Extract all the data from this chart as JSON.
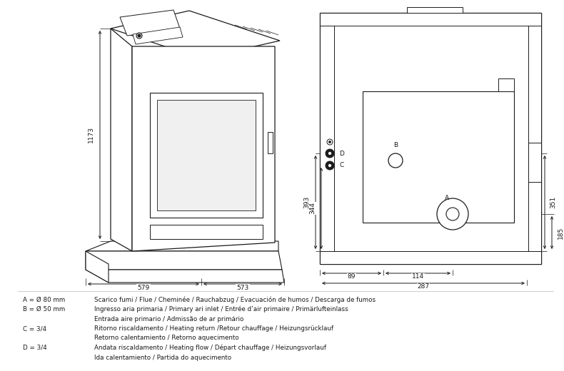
{
  "bg_color": "#ffffff",
  "line_color": "#1a1a1a",
  "text_color": "#1a1a1a",
  "dim_393": "393",
  "dim_344": "344",
  "dim_351": "351",
  "dim_185": "185",
  "dim_89": "89",
  "dim_114": "114",
  "dim_287": "287",
  "dim_1173": "1173",
  "dim_579": "579",
  "dim_573": "573",
  "label_A": "A",
  "label_B": "B",
  "label_C": "C",
  "label_D": "D",
  "legend_col1": [
    "A = Ø 80 mm",
    "B = Ø 50 mm",
    "",
    "C = 3/4",
    "",
    "D = 3/4",
    ""
  ],
  "legend_col2": [
    "Scarico fumi / Flue / Cheminée / Rauchabzug / Evacuación de humos / Descarga de fumos",
    "Ingresso aria primaria / Primary ari inlet / Entrée d’air primaire / Primärlufteinlass",
    "Entrada aire primario / Admissão de ar primário",
    "Ritorno riscaldamento / Heating return /Retour chauffage / Heizungsrücklauf",
    "Retorno calentamiento / Retorno aquecimento",
    "Andata riscaldamento / Heating flow / Départ chauffage / Heizungsvorlauf",
    "Ida calentamiento / Partida do aquecimento"
  ]
}
